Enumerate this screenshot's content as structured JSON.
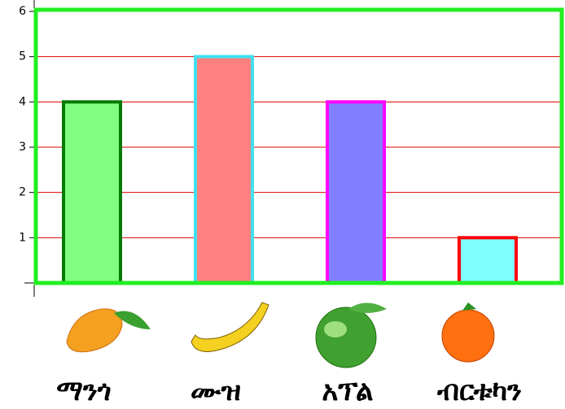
{
  "chart_data": {
    "type": "bar",
    "categories": [
      "ማንጎ",
      "ሙዝ",
      "አፕል",
      "ብርቱካን"
    ],
    "values": [
      4,
      5,
      4,
      1
    ],
    "colors": [
      "#80ff80",
      "#ff8080",
      "#8080ff",
      "#80ffff"
    ],
    "edgecolors": [
      "#007a00",
      "#40e0f0",
      "#ff00ff",
      "#ff0000"
    ],
    "ylim": [
      0,
      6
    ],
    "yticks": [
      1,
      2,
      3,
      4,
      5,
      6
    ],
    "grid": true,
    "grid_color": "#dd0000",
    "frame_color": "#22ee22"
  }
}
